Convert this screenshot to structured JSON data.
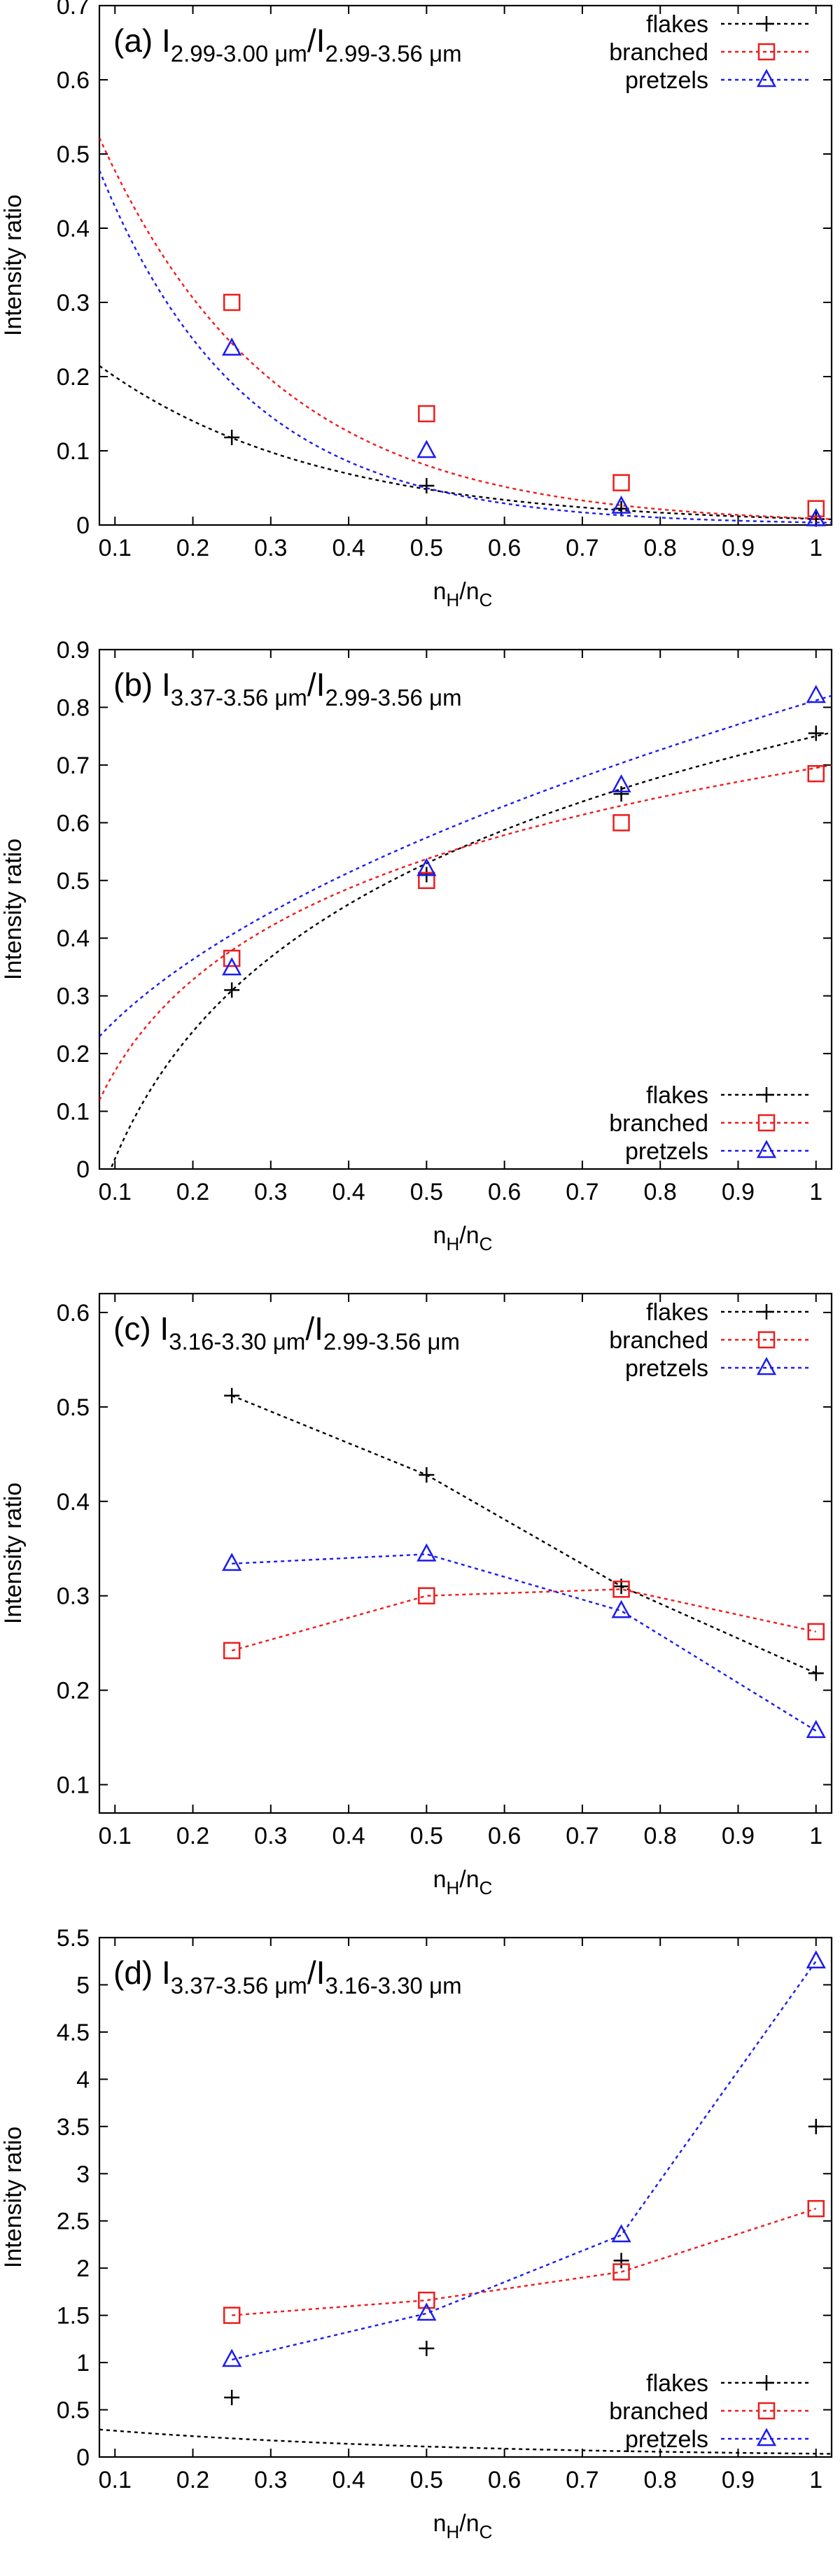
{
  "colors": {
    "flakes": "#000000",
    "branched": "#ee1c1c",
    "pretzels": "#1c1cee"
  },
  "chart_data": [
    {
      "type": "scatter",
      "panel_label": "(a) I",
      "title_parts": [
        {
          "t": "(a) I"
        },
        {
          "t": "2.99-3.00 μm",
          "sub": true
        },
        {
          "t": "/I"
        },
        {
          "t": "2.99-3.56 μm",
          "sub": true
        }
      ],
      "ylabel": "Intensity ratio",
      "xlabel": {
        "base1": "n",
        "sub1": "H",
        "slash": "/n",
        "sub2": "C"
      },
      "xlim": [
        0.08,
        1.02
      ],
      "ylim": [
        0,
        0.7
      ],
      "xticks": [
        "0.1",
        "0.2",
        "0.3",
        "0.4",
        "0.5",
        "0.6",
        "0.7",
        "0.8",
        "0.9",
        "1"
      ],
      "yticks": [
        "0",
        "0.1",
        "0.2",
        "0.3",
        "0.4",
        "0.5",
        "0.6",
        "0.7"
      ],
      "legend_position": "top-right",
      "connect": "fit",
      "series": [
        {
          "name": "flakes",
          "marker": "plus",
          "x": [
            0.25,
            0.5,
            0.75,
            1.0
          ],
          "y": [
            0.118,
            0.053,
            0.022,
            0.008
          ],
          "fit": {
            "kind": "exp",
            "a": 0.285,
            "b": 3.55
          }
        },
        {
          "name": "branched",
          "marker": "square",
          "x": [
            0.25,
            0.5,
            0.75,
            1.0
          ],
          "y": [
            0.3,
            0.15,
            0.057,
            0.022
          ],
          "fit": {
            "kind": "exp",
            "a": 0.745,
            "b": 4.45
          }
        },
        {
          "name": "pretzels",
          "marker": "triangle",
          "x": [
            0.25,
            0.5,
            0.75,
            1.0
          ],
          "y": [
            0.238,
            0.1,
            0.025,
            0.008
          ],
          "fit": {
            "kind": "exp",
            "a": 0.735,
            "b": 5.38
          }
        }
      ]
    },
    {
      "type": "scatter",
      "panel_label": "(b) I",
      "title_parts": [
        {
          "t": "(b) I"
        },
        {
          "t": "3.37-3.56 μm",
          "sub": true
        },
        {
          "t": "/I"
        },
        {
          "t": "2.99-3.56 μm",
          "sub": true
        }
      ],
      "ylabel": "Intensity ratio",
      "xlabel": {
        "base1": "n",
        "sub1": "H",
        "slash": "/n",
        "sub2": "C"
      },
      "xlim": [
        0.08,
        1.02
      ],
      "ylim": [
        0,
        0.9
      ],
      "xticks": [
        "0.1",
        "0.2",
        "0.3",
        "0.4",
        "0.5",
        "0.6",
        "0.7",
        "0.8",
        "0.9",
        "1"
      ],
      "yticks": [
        "0",
        "0.1",
        "0.2",
        "0.3",
        "0.4",
        "0.5",
        "0.6",
        "0.7",
        "0.8",
        "0.9"
      ],
      "legend_position": "bottom-right",
      "connect": "fit",
      "series": [
        {
          "name": "flakes",
          "marker": "plus",
          "x": [
            0.25,
            0.5,
            0.75,
            1.0
          ],
          "y": [
            0.31,
            0.51,
            0.65,
            0.755
          ],
          "fit": {
            "kind": "log",
            "a": 0.75,
            "b": 0.318
          }
        },
        {
          "name": "branched",
          "marker": "square",
          "x": [
            0.25,
            0.5,
            0.75,
            1.0
          ],
          "y": [
            0.365,
            0.5,
            0.6,
            0.685
          ],
          "fit": {
            "kind": "log",
            "a": 0.695,
            "b": 0.228
          }
        },
        {
          "name": "pretzels",
          "marker": "triangle",
          "x": [
            0.25,
            0.5,
            0.75,
            1.0
          ],
          "y": [
            0.348,
            0.52,
            0.665,
            0.82
          ],
          "fit": {
            "kind": "pow",
            "a": 0.812,
            "b": 0.5
          }
        }
      ]
    },
    {
      "type": "line",
      "panel_label": "(c) I",
      "title_parts": [
        {
          "t": "(c) I"
        },
        {
          "t": "3.16-3.30 μm",
          "sub": true
        },
        {
          "t": "/I"
        },
        {
          "t": "2.99-3.56 μm",
          "sub": true
        }
      ],
      "ylabel": "Intensity ratio",
      "xlabel": {
        "base1": "n",
        "sub1": "H",
        "slash": "/n",
        "sub2": "C"
      },
      "xlim": [
        0.08,
        1.02
      ],
      "ylim": [
        0.07,
        0.62
      ],
      "xticks": [
        "0.1",
        "0.2",
        "0.3",
        "0.4",
        "0.5",
        "0.6",
        "0.7",
        "0.8",
        "0.9",
        "1"
      ],
      "yticks": [
        "0.1",
        "0.2",
        "0.3",
        "0.4",
        "0.5",
        "0.6"
      ],
      "legend_position": "top-right",
      "connect": "segments",
      "series": [
        {
          "name": "flakes",
          "marker": "plus",
          "x": [
            0.25,
            0.5,
            0.75,
            1.0
          ],
          "y": [
            0.512,
            0.428,
            0.31,
            0.218
          ]
        },
        {
          "name": "branched",
          "marker": "square",
          "x": [
            0.25,
            0.5,
            0.75,
            1.0
          ],
          "y": [
            0.242,
            0.3,
            0.307,
            0.262
          ]
        },
        {
          "name": "pretzels",
          "marker": "triangle",
          "x": [
            0.25,
            0.5,
            0.75,
            1.0
          ],
          "y": [
            0.334,
            0.344,
            0.284,
            0.157
          ]
        }
      ]
    },
    {
      "type": "line",
      "panel_label": "(d) I",
      "title_parts": [
        {
          "t": "(d) I"
        },
        {
          "t": "3.37-3.56 μm",
          "sub": true
        },
        {
          "t": "/I"
        },
        {
          "t": "3.16-3.30 μm",
          "sub": true
        }
      ],
      "ylabel": "Intensity ratio",
      "xlabel": {
        "base1": "n",
        "sub1": "H",
        "slash": "/n",
        "sub2": "C"
      },
      "xlim": [
        0.08,
        1.02
      ],
      "ylim": [
        0,
        5.5
      ],
      "xticks": [
        "0.1",
        "0.2",
        "0.3",
        "0.4",
        "0.5",
        "0.6",
        "0.7",
        "0.8",
        "0.9",
        "1"
      ],
      "yticks": [
        "0",
        "0.5",
        "1",
        "1.5",
        "2",
        "2.5",
        "3",
        "3.5",
        "4",
        "4.5",
        "5",
        "5.5"
      ],
      "legend_position": "bottom-right",
      "connect": "mixed",
      "series": [
        {
          "name": "flakes",
          "marker": "plus",
          "x": [
            0.25,
            0.5,
            0.75,
            1.0
          ],
          "y": [
            0.63,
            1.15,
            2.08,
            3.5
          ],
          "fit": {
            "kind": "exp",
            "a": 0.35,
            "b": 2.3
          }
        },
        {
          "name": "branched",
          "marker": "square",
          "x": [
            0.25,
            0.5,
            0.75,
            1.0
          ],
          "y": [
            1.5,
            1.66,
            1.96,
            2.63
          ]
        },
        {
          "name": "pretzels",
          "marker": "triangle",
          "x": [
            0.25,
            0.5,
            0.75,
            1.0
          ],
          "y": [
            1.03,
            1.52,
            2.35,
            5.25
          ]
        }
      ]
    }
  ]
}
